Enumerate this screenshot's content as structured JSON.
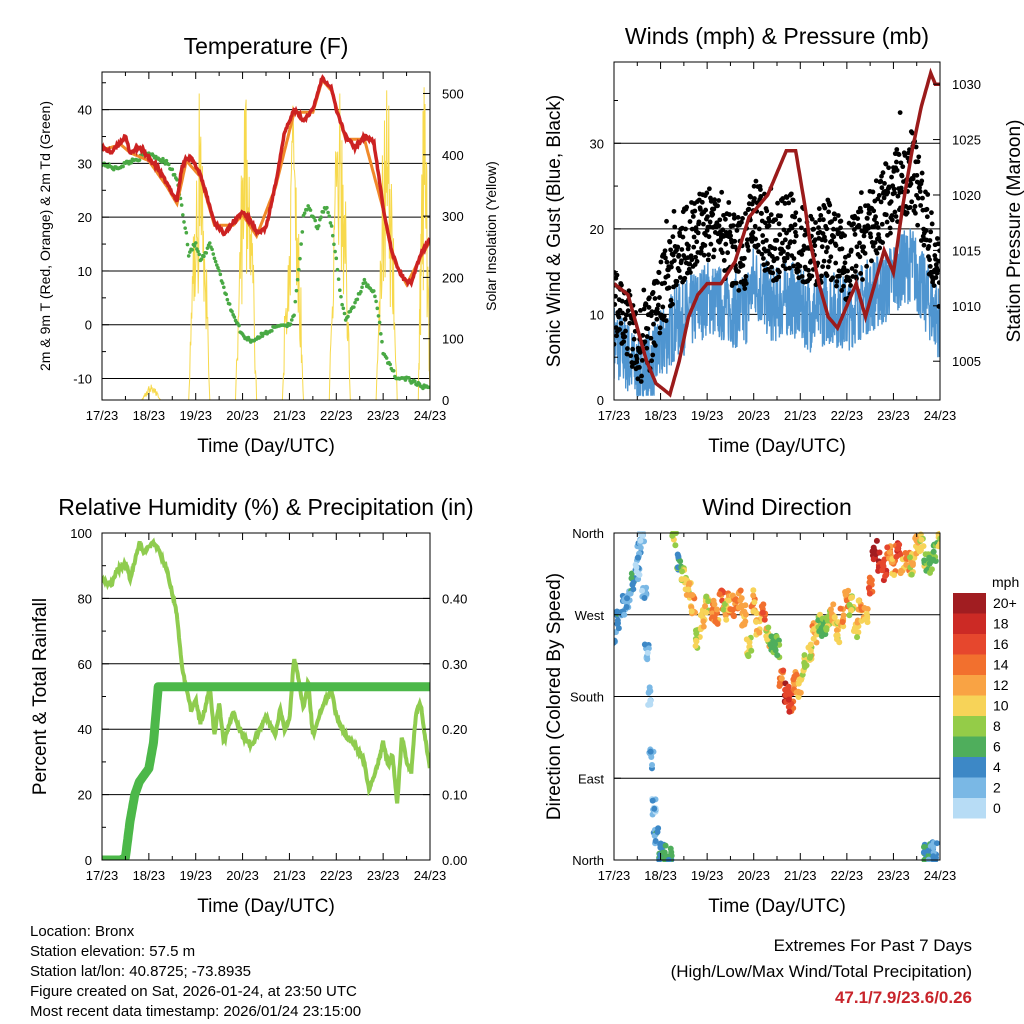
{
  "chart_data": [
    {
      "id": "temperature",
      "type": "line",
      "title": "Temperature (F)",
      "xlabel": "Time (Day/UTC)",
      "ylabel": "2m & 9m T (Red, Orange) & 2m Td (Green)",
      "ylabel_right": "Solar Insolation (Yellow)",
      "x_ticks": [
        "17/23",
        "18/23",
        "19/23",
        "20/23",
        "21/23",
        "22/23",
        "23/23",
        "24/23"
      ],
      "xlim": [
        0,
        7
      ],
      "ylim": [
        -14,
        47
      ],
      "y_ticks": [
        -10,
        0,
        10,
        20,
        30,
        40
      ],
      "ylim_right": [
        0,
        535
      ],
      "y_ticks_right": [
        0,
        100,
        200,
        300,
        400,
        500
      ],
      "gridlines": [
        -10,
        0,
        10,
        20,
        30,
        40
      ],
      "series": [
        {
          "name": "2m T",
          "color": "#cc2222",
          "x": [
            0,
            0.2,
            0.4,
            0.5,
            0.6,
            0.8,
            1.0,
            1.2,
            1.4,
            1.6,
            1.7,
            1.8,
            1.9,
            2.1,
            2.3,
            2.4,
            2.6,
            2.8,
            3.0,
            3.2,
            3.3,
            3.5,
            3.7,
            3.9,
            4.1,
            4.3,
            4.5,
            4.6,
            4.7,
            4.8,
            4.9,
            5.0,
            5.2,
            5.4,
            5.6,
            5.8,
            6.0,
            6.1,
            6.2,
            6.4,
            6.5,
            6.6,
            6.8,
            7.0
          ],
          "y": [
            33,
            32,
            34,
            35,
            32,
            33,
            31,
            29,
            26,
            23,
            29,
            31,
            31,
            28,
            22,
            19,
            17,
            19,
            21,
            19,
            17,
            18,
            26,
            36,
            40,
            38,
            40,
            43,
            46,
            45,
            44,
            40,
            35,
            33,
            35,
            34,
            22,
            17,
            13,
            9,
            8,
            8,
            13,
            16
          ]
        },
        {
          "name": "9m T",
          "color": "#f08a2a",
          "x": [
            0,
            0.4,
            0.6,
            1.0,
            1.4,
            1.6,
            1.8,
            2.1,
            2.4,
            2.8,
            3.0,
            3.3,
            3.7,
            4.1,
            4.5,
            4.7,
            4.9,
            5.2,
            5.6,
            6.0,
            6.2,
            6.5,
            6.8,
            7.0
          ],
          "y": [
            32.5,
            33.5,
            32,
            30.5,
            25.5,
            22.5,
            30.5,
            27.5,
            18.5,
            18.5,
            20.5,
            16.5,
            25.5,
            39.5,
            39.5,
            45.5,
            43.5,
            34.5,
            34.5,
            21.5,
            12.5,
            7.5,
            12.5,
            15.5
          ]
        },
        {
          "name": "2m Td",
          "color": "#49a944",
          "x": [
            0,
            0.3,
            0.5,
            0.8,
            1.0,
            1.2,
            1.4,
            1.6,
            1.7,
            1.8,
            1.85,
            1.9,
            2.0,
            2.1,
            2.2,
            2.3,
            2.5,
            2.7,
            2.9,
            3.0,
            3.2,
            3.4,
            3.6,
            3.8,
            4.0,
            4.1,
            4.2,
            4.3,
            4.4,
            4.5,
            4.6,
            4.7,
            4.8,
            4.9,
            5.0,
            5.1,
            5.2,
            5.4,
            5.6,
            5.8,
            5.9,
            6.0,
            6.1,
            6.3,
            6.5,
            6.7,
            7.0
          ],
          "y": [
            30,
            29,
            30,
            31,
            32,
            31,
            30,
            27,
            22,
            17,
            13,
            14,
            15,
            12,
            13,
            15,
            10,
            4,
            0,
            -2,
            -3,
            -2,
            -1,
            0,
            0,
            2,
            10,
            20,
            22,
            20,
            18,
            21,
            22,
            18,
            12,
            5,
            1,
            4,
            8,
            6,
            2,
            -5,
            -7,
            -10,
            -10,
            -11,
            -12
          ]
        },
        {
          "name": "Solar Insolation",
          "axis": "right",
          "color": "#f7d94c",
          "days": [
            {
              "start": 0.85,
              "end": 1.25,
              "peak": 25
            },
            {
              "start": 1.85,
              "end": 2.3,
              "peak": 500
            },
            {
              "start": 2.85,
              "end": 3.3,
              "peak": 490
            },
            {
              "start": 3.85,
              "end": 4.3,
              "peak": 480
            },
            {
              "start": 4.85,
              "end": 5.3,
              "peak": 500
            },
            {
              "start": 5.85,
              "end": 6.3,
              "peak": 505
            },
            {
              "start": 6.75,
              "end": 7.0,
              "peak": 510
            }
          ]
        }
      ]
    },
    {
      "id": "winds",
      "type": "scatter",
      "title": "Winds (mph) & Pressure (mb)",
      "xlabel": "Time (Day/UTC)",
      "ylabel": "Sonic Wind & Gust (Blue, Black)",
      "ylabel_right": "Station Pressure (Maroon)",
      "x_ticks": [
        "17/23",
        "18/23",
        "19/23",
        "20/23",
        "21/23",
        "22/23",
        "23/23",
        "24/23"
      ],
      "xlim": [
        0,
        7
      ],
      "ylim": [
        0,
        39.5
      ],
      "y_ticks": [
        0,
        10,
        20,
        30
      ],
      "ylim_right": [
        1001.5,
        1032
      ],
      "y_ticks_right": [
        1005,
        1010,
        1015,
        1020,
        1025,
        1030
      ],
      "gridlines": [
        10,
        20,
        30
      ],
      "series": [
        {
          "name": "Sonic Wind",
          "color": "#4f95d0",
          "x": [
            0,
            0.3,
            0.5,
            0.8,
            1.0,
            1.3,
            1.6,
            2.0,
            2.4,
            2.8,
            3.0,
            3.4,
            3.8,
            4.2,
            4.6,
            5.0,
            5.4,
            5.8,
            6.1,
            6.4,
            6.7,
            7.0
          ],
          "y": [
            7,
            5,
            3,
            4,
            6,
            9,
            10,
            12,
            11,
            10,
            14,
            11,
            12,
            10,
            11,
            10,
            12,
            13,
            15,
            16,
            12,
            9
          ]
        },
        {
          "name": "Gust",
          "color": "#000000",
          "x": [
            0,
            0.3,
            0.5,
            0.8,
            1.0,
            1.3,
            1.6,
            2.0,
            2.4,
            2.8,
            3.0,
            3.4,
            3.8,
            4.2,
            4.6,
            5.0,
            5.4,
            5.8,
            6.1,
            6.4,
            6.7,
            7.0
          ],
          "y": [
            11,
            9,
            6,
            8,
            12,
            16,
            19,
            21,
            18,
            17,
            22,
            18,
            20,
            17,
            19,
            16,
            19,
            23,
            25,
            27,
            21,
            13
          ]
        },
        {
          "name": "Station Pressure",
          "axis": "right",
          "color": "#9b1b1b",
          "x": [
            0,
            0.3,
            0.5,
            0.7,
            0.9,
            1.2,
            1.4,
            1.6,
            1.8,
            2.0,
            2.3,
            2.6,
            2.9,
            3.1,
            3.3,
            3.5,
            3.7,
            3.9,
            4.1,
            4.2,
            4.4,
            4.6,
            4.8,
            5.0,
            5.2,
            5.4,
            5.6,
            5.8,
            6.0,
            6.2,
            6.4,
            6.6,
            6.8,
            6.9,
            7.0
          ],
          "y": [
            1012,
            1011,
            1008,
            1005,
            1003,
            1002,
            1005,
            1009,
            1011,
            1012,
            1012,
            1014,
            1018,
            1019,
            1020,
            1022,
            1024,
            1024,
            1019,
            1016,
            1012,
            1009,
            1008,
            1010,
            1012,
            1009,
            1012,
            1015,
            1013,
            1019,
            1024,
            1028,
            1031,
            1030,
            1030
          ]
        }
      ]
    },
    {
      "id": "humidity",
      "type": "line",
      "title": "Relative Humidity (%) & Precipitation (in)",
      "xlabel": "Time (Day/UTC)",
      "ylabel": "Percent & Total Rainfall",
      "x_ticks": [
        "17/23",
        "18/23",
        "19/23",
        "20/23",
        "21/23",
        "22/23",
        "23/23",
        "24/23"
      ],
      "xlim": [
        0,
        7
      ],
      "ylim": [
        0,
        100
      ],
      "y_ticks": [
        0,
        20,
        40,
        60,
        80,
        100
      ],
      "ylim_right": [
        0,
        0.5
      ],
      "y_ticks_right": [
        "0.00",
        "0.10",
        "0.20",
        "0.30",
        "0.40"
      ],
      "y_ticks_right_values": [
        0,
        0.1,
        0.2,
        0.3,
        0.4
      ],
      "gridlines": [
        20,
        40,
        60,
        80
      ],
      "series": [
        {
          "name": "Relative Humidity",
          "color": "#8fcc4f",
          "x": [
            0,
            0.2,
            0.3,
            0.5,
            0.6,
            0.8,
            0.9,
            1.1,
            1.2,
            1.4,
            1.6,
            1.7,
            1.8,
            1.9,
            2.0,
            2.1,
            2.2,
            2.3,
            2.4,
            2.5,
            2.6,
            2.8,
            3.0,
            3.2,
            3.4,
            3.5,
            3.7,
            3.8,
            3.9,
            4.0,
            4.1,
            4.2,
            4.3,
            4.4,
            4.5,
            4.7,
            4.9,
            5.0,
            5.2,
            5.4,
            5.6,
            5.7,
            5.9,
            6.0,
            6.1,
            6.2,
            6.3,
            6.4,
            6.5,
            6.6,
            6.7,
            6.8,
            6.9,
            7.0
          ],
          "y": [
            86,
            84,
            88,
            91,
            86,
            97,
            94,
            97,
            95,
            88,
            75,
            60,
            52,
            46,
            49,
            42,
            46,
            53,
            38,
            48,
            36,
            45,
            38,
            35,
            41,
            44,
            38,
            46,
            40,
            43,
            62,
            55,
            46,
            55,
            38,
            47,
            52,
            44,
            38,
            35,
            30,
            21,
            30,
            36,
            29,
            32,
            17,
            38,
            30,
            27,
            45,
            48,
            37,
            28
          ]
        },
        {
          "name": "Total Precipitation",
          "axis": "right",
          "color": "#4cb849",
          "x": [
            0,
            0.4,
            0.5,
            0.6,
            0.7,
            0.8,
            0.9,
            1.0,
            1.1,
            1.2,
            7.0
          ],
          "y": [
            0,
            0,
            0.004,
            0.06,
            0.1,
            0.12,
            0.13,
            0.14,
            0.18,
            0.265,
            0.265
          ]
        }
      ]
    },
    {
      "id": "wind_direction",
      "type": "scatter",
      "title": "Wind Direction",
      "xlabel": "Time (Day/UTC)",
      "ylabel": "Direction (Colored By Speed)",
      "x_ticks": [
        "17/23",
        "18/23",
        "19/23",
        "20/23",
        "21/23",
        "22/23",
        "23/23",
        "24/23"
      ],
      "xlim": [
        0,
        7
      ],
      "ylim": [
        0,
        360
      ],
      "y_ticks": [
        "North",
        "East",
        "South",
        "West",
        "North"
      ],
      "y_ticks_values": [
        0,
        90,
        180,
        270,
        360
      ],
      "gridlines": [
        90,
        180,
        270
      ],
      "x": [
        0.0,
        0.1,
        0.2,
        0.3,
        0.4,
        0.5,
        0.55,
        0.6,
        0.65,
        0.7,
        0.75,
        0.8,
        0.85,
        0.9,
        1.0,
        1.1,
        1.2,
        1.3,
        1.4,
        1.5,
        1.6,
        1.7,
        1.8,
        1.9,
        2.0,
        2.1,
        2.2,
        2.3,
        2.4,
        2.5,
        2.6,
        2.7,
        2.8,
        2.9,
        3.0,
        3.1,
        3.2,
        3.3,
        3.4,
        3.5,
        3.6,
        3.7,
        3.8,
        3.9,
        4.0,
        4.1,
        4.2,
        4.3,
        4.4,
        4.5,
        4.6,
        4.7,
        4.8,
        4.9,
        5.0,
        5.1,
        5.2,
        5.3,
        5.4,
        5.5,
        5.6,
        5.7,
        5.8,
        5.9,
        6.0,
        6.1,
        6.2,
        6.3,
        6.4,
        6.5,
        6.6,
        6.7,
        6.8,
        6.9,
        7.0,
        6.7,
        6.8,
        6.9
      ],
      "y": [
        250,
        265,
        280,
        290,
        305,
        320,
        340,
        355,
        300,
        230,
        180,
        110,
        60,
        25,
        10,
        5,
        5,
        355,
        330,
        310,
        300,
        280,
        245,
        265,
        280,
        275,
        270,
        285,
        275,
        285,
        280,
        285,
        270,
        235,
        285,
        260,
        270,
        245,
        240,
        235,
        200,
        185,
        175,
        195,
        190,
        215,
        230,
        250,
        260,
        255,
        265,
        270,
        250,
        265,
        285,
        280,
        255,
        275,
        270,
        300,
        340,
        330,
        320,
        335,
        320,
        345,
        325,
        330,
        325,
        345,
        350,
        330,
        325,
        340,
        350,
        5,
        10,
        8
      ],
      "speeds": [
        4,
        5,
        3,
        2,
        4,
        2,
        3,
        1,
        2,
        2,
        1,
        3,
        2,
        4,
        5,
        6,
        5,
        8,
        6,
        9,
        10,
        12,
        9,
        11,
        10,
        13,
        12,
        14,
        10,
        12,
        14,
        13,
        11,
        9,
        12,
        11,
        14,
        10,
        8,
        7,
        14,
        18,
        16,
        13,
        11,
        9,
        10,
        12,
        8,
        7,
        9,
        11,
        10,
        12,
        13,
        9,
        10,
        12,
        11,
        15,
        20,
        18,
        17,
        14,
        12,
        16,
        11,
        13,
        10,
        12,
        9,
        8,
        7,
        6,
        9,
        5,
        4,
        3
      ],
      "colorbar": {
        "title": "mph",
        "labels": [
          "20+",
          "18",
          "16",
          "14",
          "12",
          "10",
          "8",
          "6",
          "4",
          "2",
          "0"
        ],
        "colors": [
          "#a11d21",
          "#cc2a25",
          "#e6472d",
          "#f2702e",
          "#f9a344",
          "#f7d358",
          "#94cc48",
          "#4fae5c",
          "#3d88c6",
          "#7ab8e5",
          "#b7dcf5"
        ]
      }
    }
  ],
  "info": {
    "location": "Location: Bronx",
    "elevation": "Station elevation: 57.5 m",
    "latlon": "Station lat/lon: 40.8725; -73.8935",
    "created": "Figure created on Sat, 2026-01-24, at 23:50 UTC",
    "recent": "Most recent data timestamp: 2026/01/24 23:15:00"
  },
  "extremes": {
    "title": "Extremes For Past 7 Days",
    "subtitle": "(High/Low/Max Wind/Total Precipitation)",
    "values": "47.1/7.9/23.6/0.26"
  }
}
